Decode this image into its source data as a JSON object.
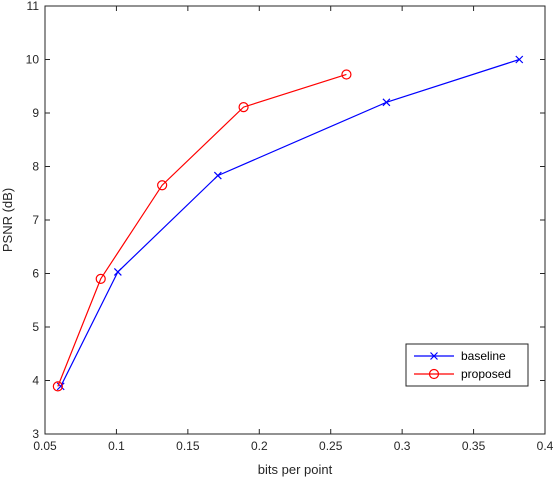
{
  "chart_data": {
    "type": "line",
    "title": "",
    "xlabel": "bits per point",
    "ylabel": "PSNR (dB)",
    "xlim": [
      0.05,
      0.4
    ],
    "ylim": [
      3,
      11
    ],
    "xticks": [
      0.05,
      0.1,
      0.15,
      0.2,
      0.25,
      0.3,
      0.35,
      0.4
    ],
    "xtick_labels": [
      "0.05",
      "0.1",
      "0.15",
      "0.2",
      "0.25",
      "0.3",
      "0.35",
      "0.4"
    ],
    "yticks": [
      3,
      4,
      5,
      6,
      7,
      8,
      9,
      10,
      11
    ],
    "ytick_labels": [
      "3",
      "4",
      "5",
      "6",
      "7",
      "8",
      "9",
      "10",
      "11"
    ],
    "grid": false,
    "legend_position": "bottom-right",
    "series": [
      {
        "name": "baseline",
        "color": "#0000ff",
        "marker": "x",
        "x": [
          0.061,
          0.101,
          0.171,
          0.289,
          0.382
        ],
        "y": [
          3.89,
          6.03,
          7.83,
          9.2,
          10.0
        ]
      },
      {
        "name": "proposed",
        "color": "#ff0000",
        "marker": "circle",
        "x": [
          0.059,
          0.089,
          0.132,
          0.189,
          0.261
        ],
        "y": [
          3.89,
          5.9,
          7.65,
          9.11,
          9.72
        ]
      }
    ]
  }
}
